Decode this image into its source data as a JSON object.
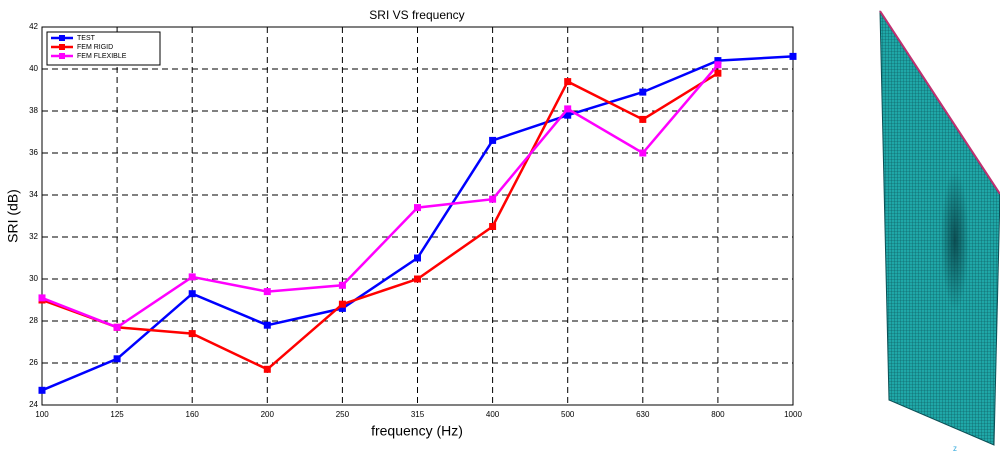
{
  "chart_data": {
    "type": "line",
    "title": "SRI VS frequency",
    "x_label": "frequency (Hz)",
    "y_label": "SRI (dB)",
    "categories": [
      "100",
      "125",
      "160",
      "200",
      "250",
      "315",
      "400",
      "500",
      "630",
      "800",
      "1000"
    ],
    "series": [
      {
        "name": "TEST",
        "color": "#0000ff",
        "values": [
          24.7,
          26.2,
          29.3,
          27.8,
          28.6,
          31.0,
          36.6,
          37.8,
          38.9,
          40.4,
          40.6
        ]
      },
      {
        "name": "FEM RIGID",
        "color": "#ff0000",
        "values": [
          29.0,
          27.7,
          27.4,
          25.7,
          28.8,
          30.0,
          32.5,
          39.4,
          37.6,
          39.8,
          null
        ]
      },
      {
        "name": "FEM FLEXIBLE",
        "color": "#ff00ff",
        "values": [
          29.1,
          27.7,
          30.1,
          29.4,
          29.7,
          33.4,
          33.8,
          38.1,
          36.0,
          40.2,
          null
        ]
      }
    ],
    "ylim": [
      24,
      42
    ],
    "yticks": [
      24,
      26,
      28,
      30,
      32,
      34,
      36,
      38,
      40,
      42
    ],
    "grid": true,
    "legend": "upper-left"
  },
  "mesh_axis_label": "z"
}
